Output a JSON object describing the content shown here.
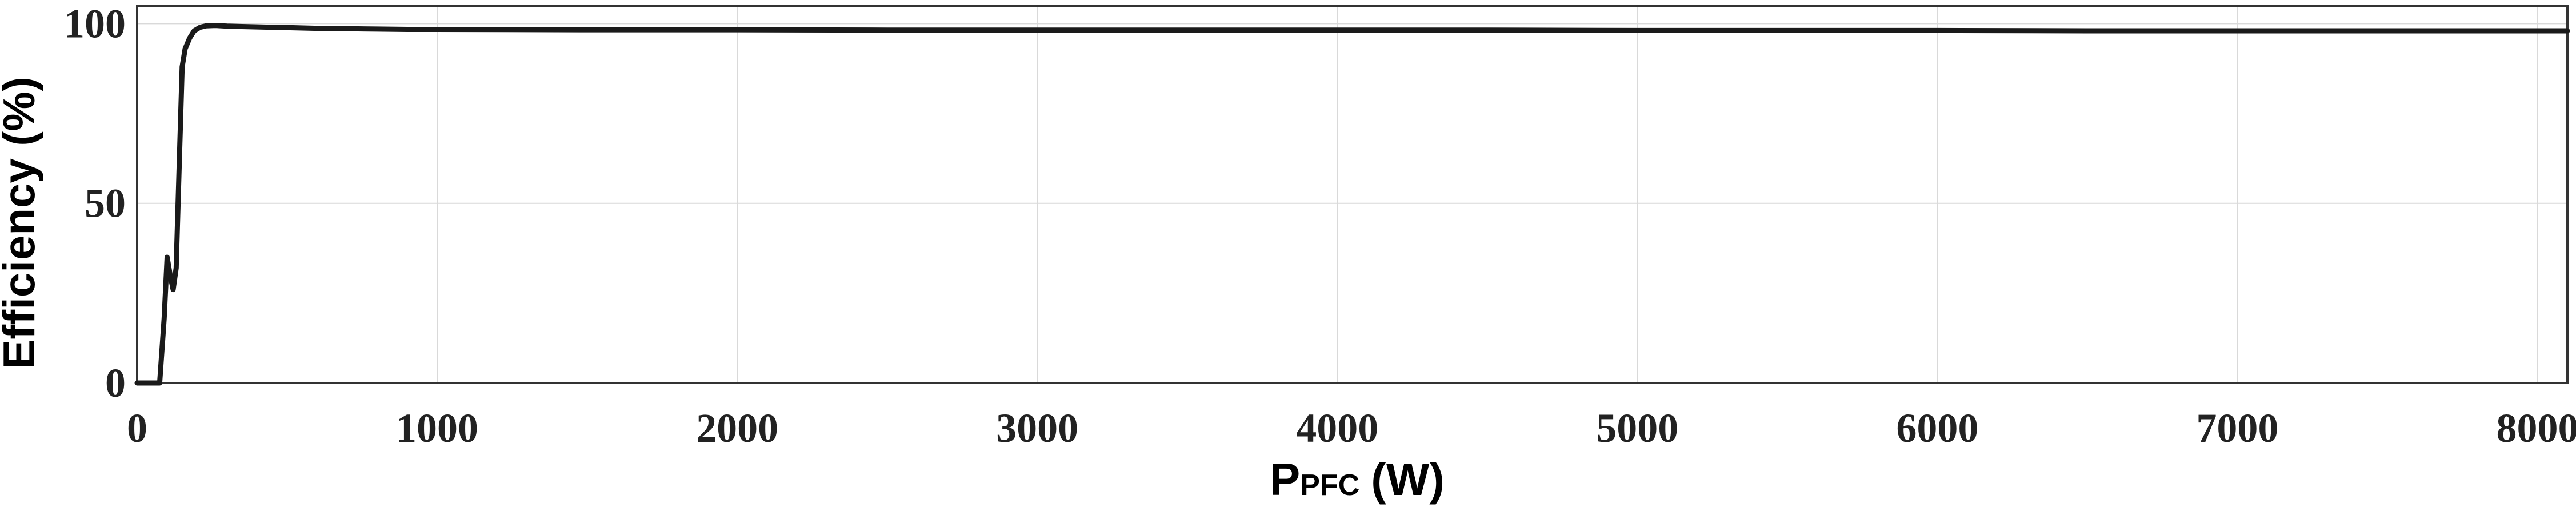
{
  "chart_data": {
    "type": "line",
    "title": "",
    "xlabel_main": "P",
    "xlabel_sub": "PFC",
    "xlabel_unit": "(W)",
    "ylabel": "Efficiency (%)",
    "xlim": [
      0,
      8100
    ],
    "ylim": [
      0,
      105
    ],
    "xticks": [
      0,
      1000,
      2000,
      3000,
      4000,
      5000,
      6000,
      7000,
      8000
    ],
    "yticks": [
      0,
      50,
      100
    ],
    "grid": true,
    "legend": "none",
    "series": [
      {
        "color": "#1a1a1a",
        "x": [
          0,
          60,
          75,
          90,
          100,
          110,
          120,
          130,
          140,
          150,
          160,
          175,
          190,
          210,
          230,
          260,
          300,
          350,
          400,
          450,
          500,
          600,
          700,
          800,
          900,
          1000,
          1500,
          2000,
          2500,
          3000,
          3500,
          4000,
          4500,
          5000,
          5500,
          6000,
          6500,
          7000,
          7500,
          8000,
          8100
        ],
        "y": [
          0,
          0,
          0,
          18,
          35,
          30,
          26,
          32,
          60,
          88,
          93,
          96,
          98,
          99,
          99.4,
          99.5,
          99.3,
          99.2,
          99.1,
          99.0,
          98.9,
          98.7,
          98.6,
          98.5,
          98.4,
          98.4,
          98.3,
          98.3,
          98.2,
          98.2,
          98.2,
          98.2,
          98.2,
          98.1,
          98.1,
          98.1,
          98.0,
          98.0,
          98.0,
          98.0,
          98.0
        ]
      }
    ]
  }
}
